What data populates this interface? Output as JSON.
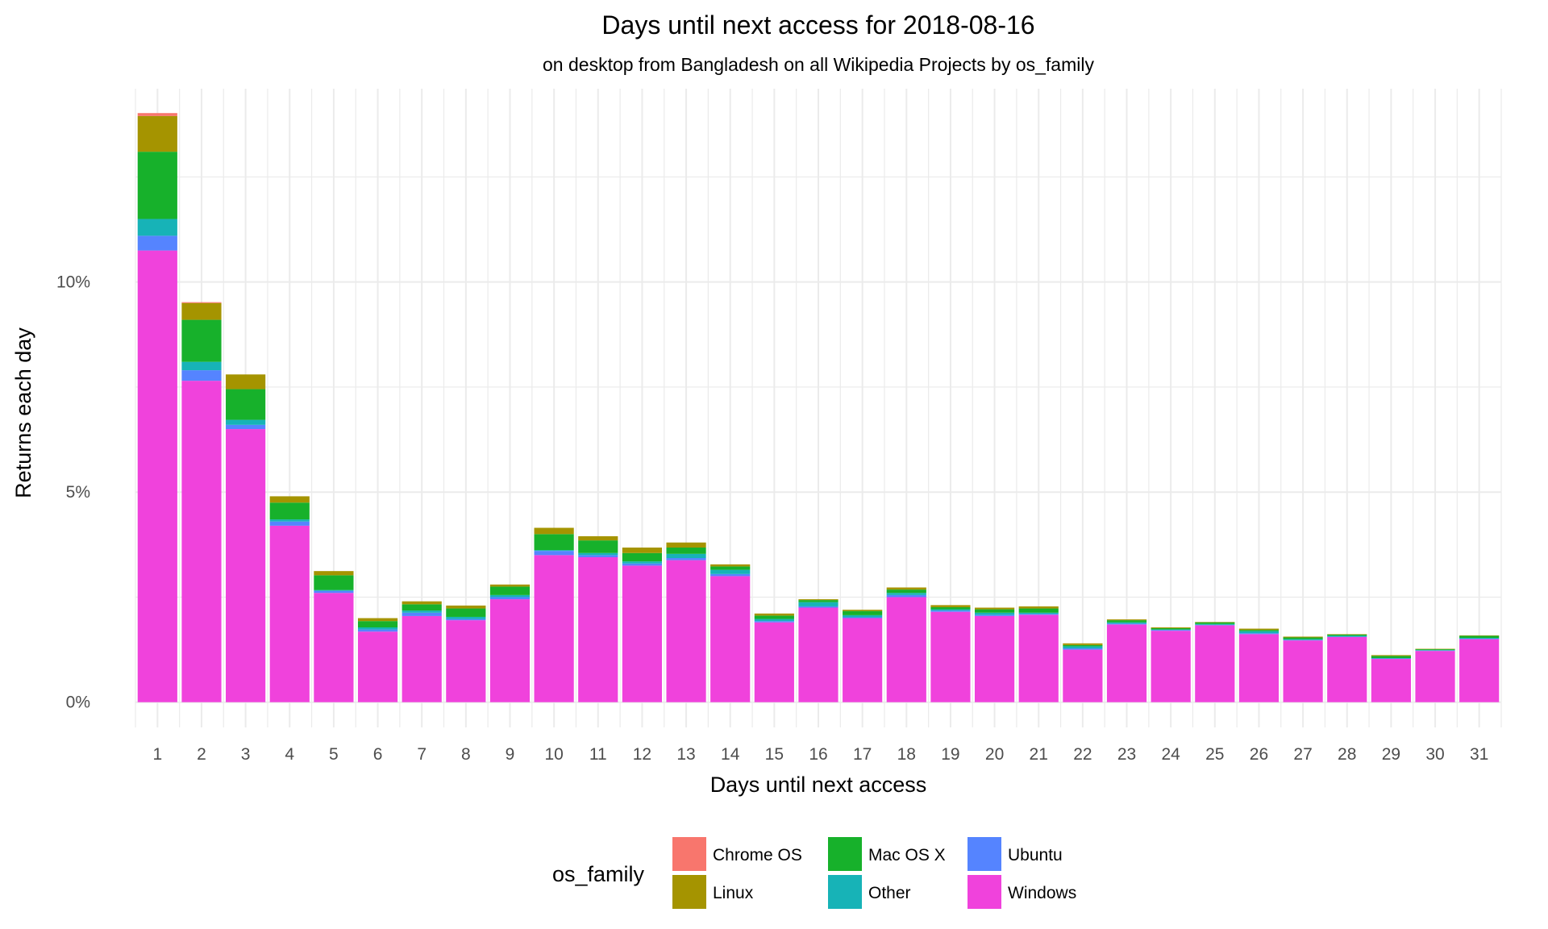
{
  "chart_data": {
    "type": "bar",
    "stacked": true,
    "title": "Days until next access for 2018-08-16",
    "subtitle": "on desktop from Bangladesh on all Wikipedia Projects by os_family",
    "xlabel": "Days until next access",
    "ylabel": "Returns each day",
    "categories": [
      "1",
      "2",
      "3",
      "4",
      "5",
      "6",
      "7",
      "8",
      "9",
      "10",
      "11",
      "12",
      "13",
      "14",
      "15",
      "16",
      "17",
      "18",
      "19",
      "20",
      "21",
      "22",
      "23",
      "24",
      "25",
      "26",
      "27",
      "28",
      "29",
      "30",
      "31"
    ],
    "ylim": [
      -0.6,
      14.6
    ],
    "yticks": [
      0,
      5,
      10
    ],
    "ytick_labels": [
      "0%",
      "5%",
      "10%"
    ],
    "grid": true,
    "legend_title": "os_family",
    "legend_position": "bottom",
    "series": [
      {
        "name": "Windows",
        "color": "#F042DC",
        "values": [
          10.75,
          7.65,
          6.5,
          4.2,
          2.6,
          1.68,
          2.05,
          1.95,
          2.45,
          3.5,
          3.45,
          3.25,
          3.38,
          3.0,
          1.9,
          2.25,
          2.0,
          2.5,
          2.15,
          2.05,
          2.08,
          1.25,
          1.85,
          1.7,
          1.83,
          1.62,
          1.47,
          1.55,
          1.03,
          1.22,
          1.5
        ]
      },
      {
        "name": "Ubuntu",
        "color": "#5584FF",
        "values": [
          0.35,
          0.25,
          0.1,
          0.1,
          0.05,
          0.05,
          0.08,
          0.03,
          0.05,
          0.1,
          0.05,
          0.05,
          0.05,
          0.05,
          0.03,
          0.03,
          0.02,
          0.05,
          0.03,
          0.03,
          0.02,
          0.03,
          0.02,
          0.02,
          0.01,
          0.02,
          0.01,
          0.01,
          0.01,
          0.01,
          0.01
        ]
      },
      {
        "name": "Other",
        "color": "#17B3B7",
        "values": [
          0.4,
          0.2,
          0.12,
          0.05,
          0.02,
          0.05,
          0.05,
          0.05,
          0.05,
          0.02,
          0.05,
          0.05,
          0.1,
          0.1,
          0.05,
          0.1,
          0.05,
          0.05,
          0.03,
          0.05,
          0.03,
          0.05,
          0.03,
          0.01,
          0.02,
          0.05,
          0.02,
          0.02,
          0.01,
          0.01,
          0.02
        ]
      },
      {
        "name": "Mac OS X",
        "color": "#17B12B",
        "values": [
          1.6,
          1.0,
          0.73,
          0.4,
          0.35,
          0.15,
          0.15,
          0.2,
          0.2,
          0.38,
          0.3,
          0.2,
          0.15,
          0.08,
          0.08,
          0.05,
          0.1,
          0.08,
          0.05,
          0.08,
          0.1,
          0.03,
          0.05,
          0.03,
          0.04,
          0.03,
          0.04,
          0.03,
          0.05,
          0.02,
          0.05
        ]
      },
      {
        "name": "Linux",
        "color": "#A59400",
        "values": [
          0.85,
          0.4,
          0.35,
          0.15,
          0.1,
          0.07,
          0.07,
          0.07,
          0.05,
          0.15,
          0.1,
          0.13,
          0.12,
          0.05,
          0.05,
          0.02,
          0.03,
          0.05,
          0.05,
          0.04,
          0.05,
          0.04,
          0.02,
          0.02,
          0.01,
          0.03,
          0.02,
          0.01,
          0.02,
          0.01,
          0.01
        ]
      },
      {
        "name": "Chrome OS",
        "color": "#F8766D",
        "values": [
          0.07,
          0.02,
          0,
          0,
          0,
          0,
          0,
          0,
          0,
          0,
          0,
          0,
          0,
          0,
          0,
          0,
          0,
          0,
          0,
          0,
          0,
          0,
          0,
          0,
          0,
          0,
          0,
          0,
          0,
          0,
          0
        ]
      }
    ],
    "legend_order": [
      "Chrome OS",
      "Linux",
      "Mac OS X",
      "Other",
      "Ubuntu",
      "Windows"
    ]
  }
}
